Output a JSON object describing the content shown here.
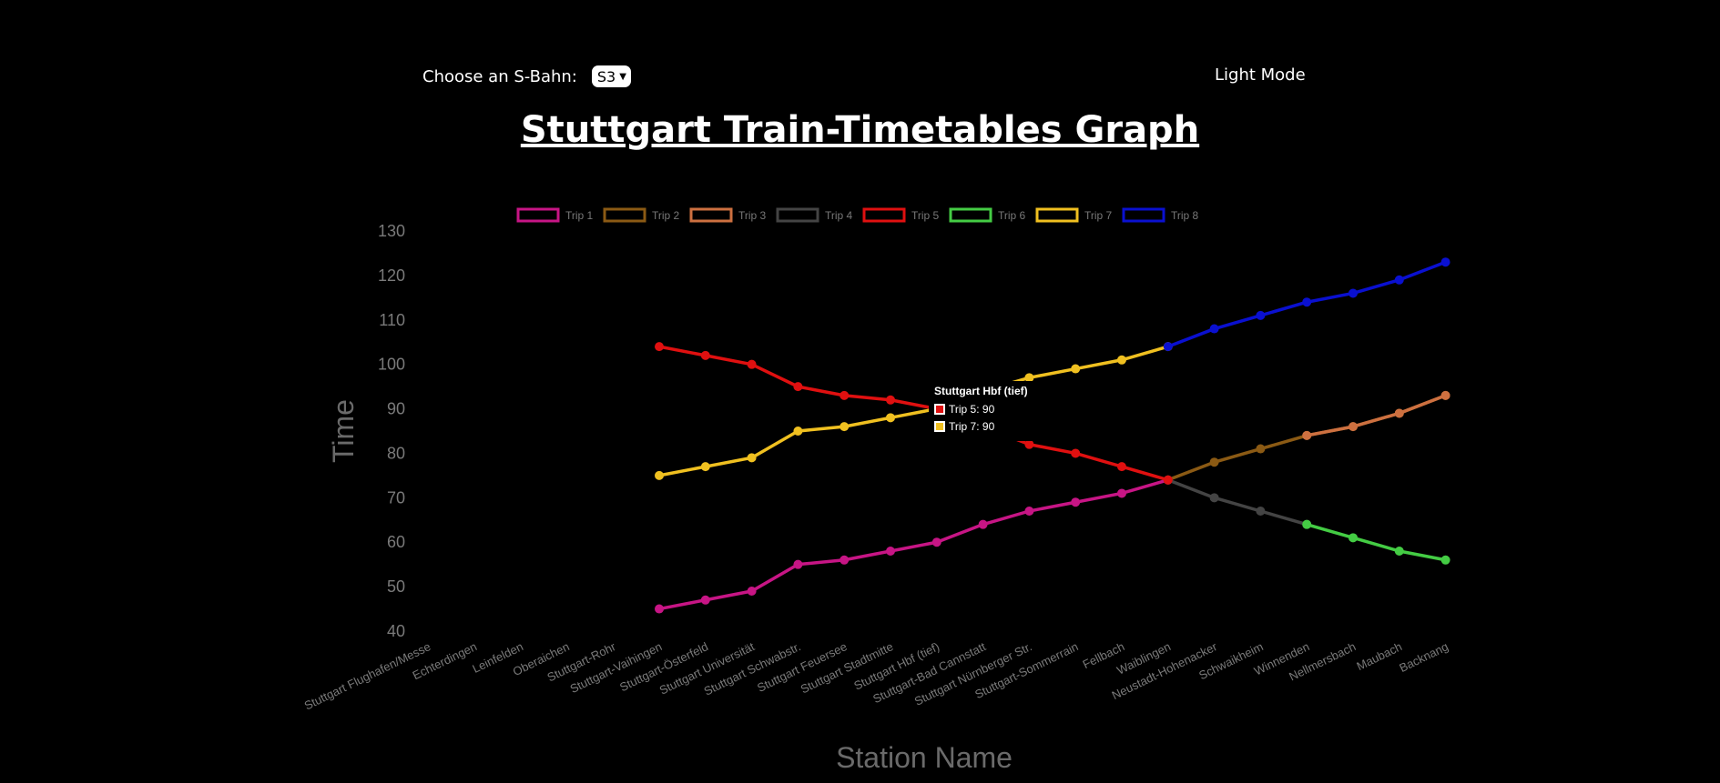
{
  "controls": {
    "select_label": "Choose an S-Bahn:",
    "select_value": "S3",
    "mode_toggle": "Light Mode"
  },
  "page_title": "Stuttgart Train-Timetables Graph",
  "tooltip": {
    "title": "Stuttgart Hbf (tief)",
    "rows": [
      "Trip 5: 90",
      "Trip 7: 90"
    ],
    "colors": [
      "#e01010",
      "#f0c020"
    ]
  },
  "chart_data": {
    "type": "line",
    "xlabel": "Station Name",
    "ylabel": "Time",
    "ylim": [
      40,
      130
    ],
    "yticks": [
      40,
      50,
      60,
      70,
      80,
      90,
      100,
      110,
      120,
      130
    ],
    "legend_position": "top",
    "grid": false,
    "categories": [
      "Stuttgart Flughafen/Messe",
      "Echterdingen",
      "Leinfelden",
      "Oberaichen",
      "Stuttgart-Rohr",
      "Stuttgart-Vaihingen",
      "Stuttgart-Österfeld",
      "Stuttgart Universität",
      "Stuttgart Schwabstr.",
      "Stuttgart Feuersee",
      "Stuttgart Stadtmitte",
      "Stuttgart Hbf (tief)",
      "Stuttgart-Bad Cannstatt",
      "Stuttgart Nürnberger Str.",
      "Stuttgart-Sommerrain",
      "Fellbach",
      "Waiblingen",
      "Neustadt-Hohenacker",
      "Schwaikheim",
      "Winnenden",
      "Nellmersbach",
      "Maubach",
      "Backnang"
    ],
    "series": [
      {
        "name": "Trip 1",
        "color": "#c71585",
        "values": [
          null,
          null,
          null,
          null,
          null,
          45,
          47,
          49,
          55,
          56,
          58,
          60,
          64,
          67,
          69,
          71,
          74,
          null,
          null,
          null,
          null,
          null,
          null
        ]
      },
      {
        "name": "Trip 2",
        "color": "#8b5a14",
        "values": [
          null,
          null,
          null,
          null,
          null,
          null,
          null,
          null,
          null,
          null,
          null,
          null,
          null,
          null,
          null,
          null,
          74,
          78,
          81,
          84,
          86,
          89,
          93
        ]
      },
      {
        "name": "Trip 3",
        "color": "#cd7040",
        "values": [
          null,
          null,
          null,
          null,
          null,
          null,
          null,
          null,
          null,
          null,
          null,
          null,
          null,
          null,
          null,
          null,
          null,
          null,
          null,
          84,
          86,
          89,
          93
        ]
      },
      {
        "name": "Trip 4",
        "color": "#444444",
        "values": [
          null,
          null,
          null,
          null,
          null,
          null,
          null,
          null,
          null,
          null,
          null,
          null,
          null,
          null,
          null,
          null,
          74,
          70,
          67,
          64,
          null,
          null,
          null
        ]
      },
      {
        "name": "Trip 5",
        "color": "#e01010",
        "values": [
          null,
          null,
          null,
          null,
          null,
          104,
          102,
          100,
          95,
          93,
          92,
          90,
          86,
          82,
          80,
          77,
          74,
          null,
          null,
          null,
          null,
          null,
          null
        ]
      },
      {
        "name": "Trip 6",
        "color": "#44cc44",
        "values": [
          null,
          null,
          null,
          null,
          null,
          null,
          null,
          null,
          null,
          null,
          null,
          null,
          null,
          null,
          null,
          null,
          null,
          null,
          null,
          64,
          61,
          58,
          56
        ]
      },
      {
        "name": "Trip 7",
        "color": "#f0c020",
        "values": [
          null,
          null,
          null,
          null,
          null,
          75,
          77,
          79,
          85,
          86,
          88,
          90,
          94,
          97,
          99,
          101,
          104,
          null,
          null,
          null,
          null,
          null,
          null
        ]
      },
      {
        "name": "Trip 8",
        "color": "#0a10d0",
        "values": [
          null,
          null,
          null,
          null,
          null,
          null,
          null,
          null,
          null,
          null,
          null,
          null,
          null,
          null,
          null,
          null,
          104,
          108,
          111,
          114,
          116,
          119,
          123
        ]
      }
    ]
  }
}
